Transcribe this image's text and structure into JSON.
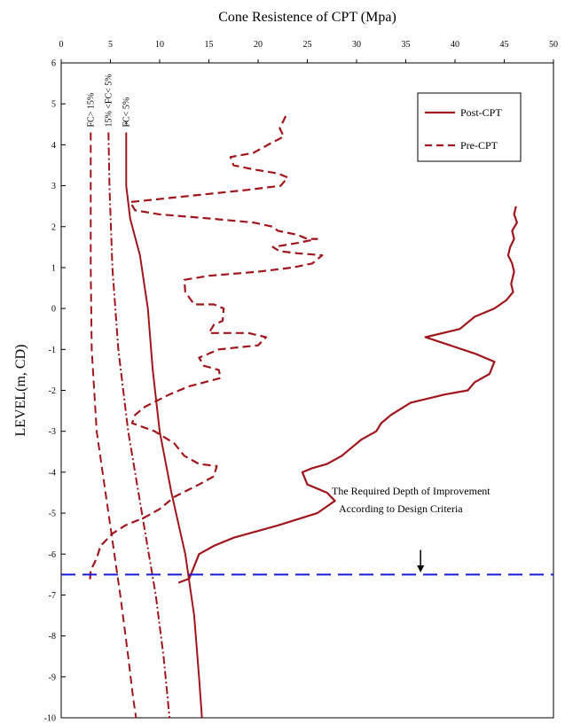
{
  "chart_data": {
    "type": "line",
    "title": "Cone Resistence of CPT (Mpa)",
    "xlabel": "",
    "ylabel": "LEVEL(m, CD)",
    "xlim": [
      0,
      50
    ],
    "ylim": [
      -10,
      6
    ],
    "x_ticks": [
      "0",
      "5",
      "10",
      "15",
      "20",
      "25",
      "30",
      "35",
      "40",
      "45",
      "50"
    ],
    "y_ticks": [
      "6",
      "5",
      "4",
      "3",
      "2",
      "1",
      "0",
      "-1",
      "-2",
      "-3",
      "-4",
      "-5",
      "-6",
      "-7",
      "-8",
      "-9",
      "-10"
    ],
    "x_axis_position": "top",
    "grid": false,
    "legend_position": "top-right",
    "legend": [
      {
        "label": "Post-CPT",
        "style": "solid"
      },
      {
        "label": "Pre-CPT",
        "style": "dashed"
      }
    ],
    "color": "#a0161c",
    "series": [
      {
        "name": "Post-CPT",
        "style": "solid",
        "points": [
          [
            46.2,
            2.5
          ],
          [
            46.0,
            2.3
          ],
          [
            46.3,
            2.1
          ],
          [
            45.8,
            1.9
          ],
          [
            46.0,
            1.7
          ],
          [
            45.6,
            1.5
          ],
          [
            45.4,
            1.3
          ],
          [
            45.8,
            1.1
          ],
          [
            46.0,
            0.9
          ],
          [
            45.7,
            0.6
          ],
          [
            45.9,
            0.4
          ],
          [
            45.2,
            0.2
          ],
          [
            44.0,
            0.0
          ],
          [
            42.0,
            -0.2
          ],
          [
            40.5,
            -0.5
          ],
          [
            37.0,
            -0.7
          ],
          [
            39.5,
            -0.9
          ],
          [
            42.0,
            -1.1
          ],
          [
            44.0,
            -1.3
          ],
          [
            43.5,
            -1.6
          ],
          [
            42.0,
            -1.8
          ],
          [
            41.3,
            -2.0
          ],
          [
            39.0,
            -2.1
          ],
          [
            35.5,
            -2.3
          ],
          [
            33.5,
            -2.6
          ],
          [
            32.5,
            -2.8
          ],
          [
            32.0,
            -3.0
          ],
          [
            30.5,
            -3.2
          ],
          [
            29.5,
            -3.4
          ],
          [
            28.5,
            -3.6
          ],
          [
            27.0,
            -3.8
          ],
          [
            25.5,
            -3.9
          ],
          [
            24.5,
            -4.0
          ],
          [
            25.0,
            -4.3
          ],
          [
            27.0,
            -4.5
          ],
          [
            27.8,
            -4.7
          ],
          [
            26.0,
            -5.0
          ],
          [
            22.0,
            -5.3
          ],
          [
            17.5,
            -5.6
          ],
          [
            15.5,
            -5.8
          ],
          [
            14.0,
            -6.0
          ],
          [
            13.5,
            -6.3
          ],
          [
            13.0,
            -6.6
          ],
          [
            11.9,
            -6.7
          ]
        ]
      },
      {
        "name": "Pre-CPT",
        "style": "dashed",
        "points": [
          [
            22.8,
            4.7
          ],
          [
            22.2,
            4.4
          ],
          [
            22.6,
            4.2
          ],
          [
            21.0,
            4.0
          ],
          [
            19.5,
            3.8
          ],
          [
            17.2,
            3.7
          ],
          [
            17.5,
            3.5
          ],
          [
            19.5,
            3.4
          ],
          [
            22.0,
            3.3
          ],
          [
            23.0,
            3.2
          ],
          [
            22.3,
            3.0
          ],
          [
            19.0,
            2.9
          ],
          [
            15.0,
            2.8
          ],
          [
            11.0,
            2.7
          ],
          [
            7.0,
            2.6
          ],
          [
            7.5,
            2.4
          ],
          [
            10.0,
            2.3
          ],
          [
            15.0,
            2.2
          ],
          [
            19.5,
            2.1
          ],
          [
            21.5,
            2.0
          ],
          [
            22.0,
            1.9
          ],
          [
            24.0,
            1.8
          ],
          [
            25.0,
            1.7
          ],
          [
            26.0,
            1.7
          ],
          [
            24.0,
            1.6
          ],
          [
            21.5,
            1.5
          ],
          [
            22.2,
            1.4
          ],
          [
            24.0,
            1.35
          ],
          [
            26.5,
            1.3
          ],
          [
            25.5,
            1.1
          ],
          [
            23.5,
            1.0
          ],
          [
            20.0,
            0.9
          ],
          [
            15.0,
            0.8
          ],
          [
            12.5,
            0.7
          ],
          [
            12.6,
            0.4
          ],
          [
            13.5,
            0.1
          ],
          [
            15.5,
            0.1
          ],
          [
            16.5,
            0.0
          ],
          [
            16.4,
            -0.3
          ],
          [
            15.5,
            -0.4
          ],
          [
            15.0,
            -0.6
          ],
          [
            17.0,
            -0.6
          ],
          [
            19.0,
            -0.6
          ],
          [
            20.8,
            -0.7
          ],
          [
            20.0,
            -0.9
          ],
          [
            16.0,
            -1.0
          ],
          [
            14.0,
            -1.2
          ],
          [
            14.5,
            -1.4
          ],
          [
            16.0,
            -1.5
          ],
          [
            16.2,
            -1.7
          ],
          [
            13.0,
            -1.9
          ],
          [
            11.0,
            -2.1
          ],
          [
            8.5,
            -2.4
          ],
          [
            7.5,
            -2.6
          ],
          [
            7.2,
            -2.8
          ],
          [
            9.5,
            -3.0
          ],
          [
            11.5,
            -3.3
          ],
          [
            12.5,
            -3.6
          ],
          [
            14.0,
            -3.8
          ],
          [
            15.8,
            -3.85
          ],
          [
            15.5,
            -4.1
          ],
          [
            14.0,
            -4.3
          ],
          [
            11.5,
            -4.6
          ],
          [
            10.0,
            -4.9
          ],
          [
            8.5,
            -5.1
          ],
          [
            6.5,
            -5.3
          ],
          [
            5.2,
            -5.5
          ],
          [
            4.0,
            -5.8
          ],
          [
            3.6,
            -6.1
          ],
          [
            3.0,
            -6.4
          ],
          [
            2.9,
            -6.7
          ]
        ]
      },
      {
        "name": "FC> 15%",
        "style": "dashed",
        "points": [
          [
            3.0,
            4.3
          ],
          [
            3.0,
            3.0
          ],
          [
            3.0,
            1.0
          ],
          [
            3.1,
            -1.0
          ],
          [
            3.6,
            -3.0
          ],
          [
            4.8,
            -5.0
          ],
          [
            6.0,
            -7.0
          ],
          [
            6.8,
            -8.5
          ],
          [
            7.3,
            -9.5
          ],
          [
            7.6,
            -10.0
          ]
        ]
      },
      {
        "name": "15% <FC< 5%",
        "style": "dash-dot",
        "points": [
          [
            4.8,
            4.3
          ],
          [
            4.9,
            3.0
          ],
          [
            5.2,
            1.0
          ],
          [
            5.8,
            -1.0
          ],
          [
            6.8,
            -3.0
          ],
          [
            8.2,
            -5.0
          ],
          [
            9.6,
            -7.0
          ],
          [
            10.4,
            -8.5
          ],
          [
            10.8,
            -9.5
          ],
          [
            11.0,
            -10.0
          ]
        ]
      },
      {
        "name": "FC< 5%",
        "style": "solid",
        "points": [
          [
            6.6,
            4.3
          ],
          [
            6.6,
            3.0
          ],
          [
            7.0,
            2.2
          ],
          [
            8.0,
            1.3
          ],
          [
            8.8,
            0.0
          ],
          [
            9.3,
            -1.5
          ],
          [
            10.0,
            -3.0
          ],
          [
            11.2,
            -4.5
          ],
          [
            12.6,
            -6.0
          ],
          [
            13.5,
            -7.5
          ],
          [
            14.0,
            -9.0
          ],
          [
            14.3,
            -10.0
          ]
        ]
      }
    ],
    "curve_labels": [
      {
        "text": "FC> 15%",
        "x": 3.0,
        "y": 4.3
      },
      {
        "text": "15% <FC< 5%",
        "x": 4.8,
        "y": 4.3
      },
      {
        "text": "FC< 5%",
        "x": 6.6,
        "y": 4.3
      }
    ],
    "cross_marker": {
      "text": "×",
      "x": 6.6,
      "y": 4.55
    },
    "reference_line": {
      "y": -6.5,
      "color": "#1a1adb",
      "style": "dashed"
    },
    "annotation": {
      "line1": "The Required Depth of Improvement",
      "line2": "According to Design Criteria",
      "arrow_x": 36.5,
      "arrow_from_y": -5.9,
      "arrow_to_y": -6.45
    }
  }
}
